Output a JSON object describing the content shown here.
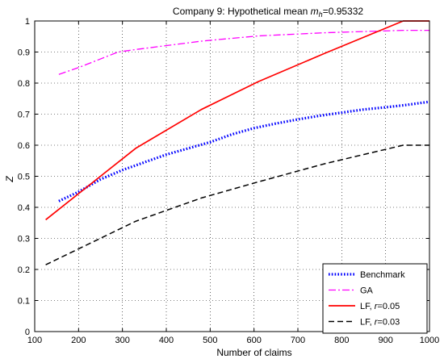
{
  "chart_data": {
    "type": "line",
    "title": {
      "prefix": "Company 9: Hypothetical mean ",
      "symbol": "m",
      "subscript": "h",
      "suffix": "=0.95332"
    },
    "xlabel": "Number of claims",
    "ylabel": "Z",
    "xlim": [
      100,
      1000
    ],
    "ylim": [
      0,
      1
    ],
    "xticks": [
      100,
      200,
      300,
      400,
      500,
      600,
      700,
      800,
      900,
      1000
    ],
    "yticks": [
      0,
      0.1,
      0.2,
      0.3,
      0.4,
      0.5,
      0.6,
      0.7,
      0.8,
      0.9,
      1
    ],
    "grid": true,
    "legend_position": "bottom-right",
    "series": [
      {
        "name": "Benchmark",
        "color": "#0000ff",
        "style": "dotted-thick",
        "x": [
          155,
          200,
          250,
          300,
          350,
          400,
          450,
          500,
          550,
          600,
          650,
          700,
          750,
          800,
          850,
          900,
          950,
          1000
        ],
        "y": [
          0.42,
          0.45,
          0.49,
          0.52,
          0.545,
          0.57,
          0.59,
          0.61,
          0.635,
          0.655,
          0.67,
          0.683,
          0.695,
          0.705,
          0.715,
          0.722,
          0.73,
          0.74
        ]
      },
      {
        "name": "GA",
        "color": "#ff00ff",
        "style": "dashdot",
        "x": [
          155,
          200,
          290,
          330,
          480,
          610,
          760,
          940,
          1000
        ],
        "y": [
          0.828,
          0.85,
          0.9,
          0.908,
          0.935,
          0.952,
          0.962,
          0.97,
          0.97
        ]
      },
      {
        "name": "LF, r=0.05",
        "name_parts": [
          "LF, ",
          "r",
          "=0.05"
        ],
        "color": "#ff0000",
        "style": "solid",
        "x": [
          125,
          330,
          480,
          610,
          760,
          940,
          1000
        ],
        "y": [
          0.36,
          0.59,
          0.715,
          0.805,
          0.895,
          1.0,
          1.0
        ]
      },
      {
        "name": "LF, r=0.03",
        "name_parts": [
          "LF, ",
          "r",
          "=0.03"
        ],
        "color": "#000000",
        "style": "dashed",
        "x": [
          125,
          330,
          480,
          610,
          760,
          940,
          1000
        ],
        "y": [
          0.215,
          0.355,
          0.43,
          0.482,
          0.54,
          0.6,
          0.6
        ]
      }
    ]
  }
}
